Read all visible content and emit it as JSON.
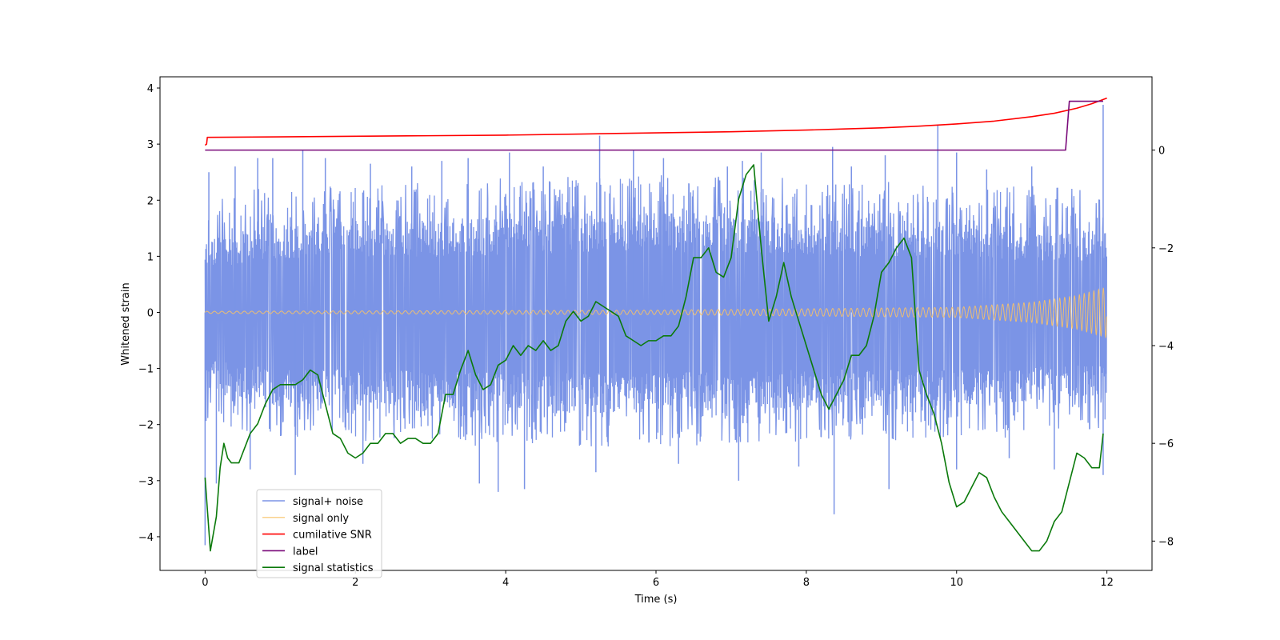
{
  "chart_data": {
    "type": "line",
    "xlabel": "Time (s)",
    "ylabel": "Whitened strain",
    "ylabel_right": "",
    "xlim": [
      -0.6,
      12.6
    ],
    "ylim": [
      -4.6,
      4.2
    ],
    "ylim_right": [
      -8.6,
      1.5
    ],
    "x_ticks": [
      0,
      2,
      4,
      6,
      8,
      10,
      12
    ],
    "x_tick_labels": [
      "0",
      "2",
      "4",
      "6",
      "8",
      "10",
      "12"
    ],
    "y_ticks": [
      4,
      3,
      2,
      1,
      0,
      -1,
      -2,
      -3,
      -4
    ],
    "y_tick_labels": [
      "4",
      "3",
      "2",
      "1",
      "0",
      "−1",
      "−2",
      "−3",
      "−4"
    ],
    "y_right_ticks": [
      0,
      -2,
      -4,
      -6,
      -8
    ],
    "y_right_tick_labels": [
      "0",
      "−2",
      "−4",
      "−6",
      "−8"
    ],
    "grid": false,
    "legend_position": "lower-left",
    "series": [
      {
        "name": "signal+ noise",
        "color": "#7b94e6",
        "axis": "left",
        "kind": "noise band",
        "x_range": [
          0,
          12
        ],
        "envelope_upper": [
          [
            0,
            1.3
          ],
          [
            1,
            1.6
          ],
          [
            2,
            1.6
          ],
          [
            4,
            1.7
          ],
          [
            6,
            1.8
          ],
          [
            8,
            1.7
          ],
          [
            10,
            1.6
          ],
          [
            12,
            1.5
          ]
        ],
        "envelope_lower": [
          [
            0,
            -1.4
          ],
          [
            1,
            -1.7
          ],
          [
            2,
            -1.7
          ],
          [
            4,
            -1.8
          ],
          [
            6,
            -1.8
          ],
          [
            8,
            -1.7
          ],
          [
            10,
            -1.7
          ],
          [
            12,
            -1.5
          ]
        ],
        "spikes": [
          [
            0.05,
            2.5
          ],
          [
            0.4,
            2.6
          ],
          [
            0.7,
            2.75
          ],
          [
            0.9,
            2.75
          ],
          [
            1.3,
            2.9
          ],
          [
            1.6,
            2.75
          ],
          [
            2.2,
            2.65
          ],
          [
            2.75,
            2.6
          ],
          [
            3.15,
            2.7
          ],
          [
            3.5,
            2.75
          ],
          [
            4.05,
            2.85
          ],
          [
            4.5,
            2.6
          ],
          [
            5.25,
            3.15
          ],
          [
            5.7,
            2.9
          ],
          [
            6.1,
            2.75
          ],
          [
            6.95,
            2.6
          ],
          [
            7.15,
            2.7
          ],
          [
            7.4,
            2.85
          ],
          [
            8.35,
            2.95
          ],
          [
            8.6,
            2.6
          ],
          [
            9.05,
            2.8
          ],
          [
            9.75,
            3.35
          ],
          [
            10.0,
            2.85
          ],
          [
            10.4,
            2.55
          ],
          [
            11.0,
            2.6
          ],
          [
            11.95,
            3.7
          ],
          [
            0.0,
            -4.15
          ],
          [
            0.15,
            -3.05
          ],
          [
            0.6,
            -2.8
          ],
          [
            1.2,
            -2.9
          ],
          [
            2.1,
            -2.7
          ],
          [
            3.65,
            -3.05
          ],
          [
            3.9,
            -3.2
          ],
          [
            4.25,
            -3.15
          ],
          [
            5.2,
            -2.85
          ],
          [
            6.3,
            -2.7
          ],
          [
            7.1,
            -3.0
          ],
          [
            7.9,
            -2.75
          ],
          [
            8.37,
            -3.6
          ],
          [
            9.1,
            -3.15
          ],
          [
            10.0,
            -2.8
          ],
          [
            10.7,
            -2.6
          ],
          [
            11.3,
            -2.8
          ],
          [
            11.95,
            -2.9
          ]
        ]
      },
      {
        "name": "signal only",
        "color": "#f9c266",
        "axis": "left",
        "kind": "chirp",
        "amplitude": [
          [
            0,
            0.02
          ],
          [
            6,
            0.04
          ],
          [
            10,
            0.09
          ],
          [
            11,
            0.18
          ],
          [
            11.6,
            0.3
          ],
          [
            12,
            0.45
          ]
        ],
        "frequency_hz": [
          [
            0,
            10
          ],
          [
            6,
            11
          ],
          [
            10,
            13
          ],
          [
            12,
            16
          ]
        ]
      },
      {
        "name": "cumilative SNR",
        "color": "#ff0000",
        "axis": "left",
        "x": [
          0.0,
          0.02,
          0.03,
          1,
          2,
          3,
          4,
          5,
          6,
          7,
          8,
          8.5,
          9,
          9.5,
          10,
          10.5,
          11,
          11.3,
          11.6,
          11.8,
          12.0
        ],
        "y": [
          2.98,
          3.0,
          3.12,
          3.13,
          3.14,
          3.15,
          3.16,
          3.18,
          3.2,
          3.22,
          3.25,
          3.27,
          3.29,
          3.32,
          3.36,
          3.41,
          3.49,
          3.55,
          3.64,
          3.72,
          3.82
        ]
      },
      {
        "name": "label",
        "color": "#7a0a7a",
        "axis": "right",
        "x": [
          0,
          11.45,
          11.5,
          11.95
        ],
        "y": [
          0,
          0,
          1,
          1
        ]
      },
      {
        "name": "signal statistics",
        "color": "#0b7a0b",
        "axis": "right",
        "x": [
          0.0,
          0.07,
          0.15,
          0.2,
          0.25,
          0.3,
          0.35,
          0.4,
          0.45,
          0.5,
          0.55,
          0.6,
          0.7,
          0.8,
          0.9,
          1.0,
          1.1,
          1.2,
          1.3,
          1.4,
          1.5,
          1.6,
          1.7,
          1.8,
          1.9,
          2.0,
          2.1,
          2.2,
          2.3,
          2.4,
          2.5,
          2.6,
          2.7,
          2.8,
          2.9,
          3.0,
          3.1,
          3.2,
          3.3,
          3.4,
          3.5,
          3.6,
          3.7,
          3.8,
          3.9,
          4.0,
          4.1,
          4.2,
          4.3,
          4.4,
          4.5,
          4.6,
          4.7,
          4.8,
          4.9,
          5.0,
          5.1,
          5.2,
          5.3,
          5.4,
          5.5,
          5.6,
          5.7,
          5.8,
          5.9,
          6.0,
          6.1,
          6.2,
          6.3,
          6.4,
          6.5,
          6.6,
          6.7,
          6.8,
          6.9,
          7.0,
          7.1,
          7.2,
          7.3,
          7.4,
          7.5,
          7.6,
          7.7,
          7.8,
          7.9,
          8.0,
          8.1,
          8.2,
          8.3,
          8.4,
          8.5,
          8.6,
          8.7,
          8.8,
          8.9,
          9.0,
          9.1,
          9.2,
          9.3,
          9.4,
          9.5,
          9.6,
          9.7,
          9.8,
          9.9,
          10.0,
          10.1,
          10.2,
          10.3,
          10.4,
          10.5,
          10.6,
          10.7,
          10.8,
          10.9,
          11.0,
          11.1,
          11.2,
          11.3,
          11.4,
          11.5,
          11.6,
          11.7,
          11.8,
          11.9,
          11.95
        ],
        "y": [
          -6.7,
          -8.2,
          -7.5,
          -6.5,
          -6.0,
          -6.3,
          -6.4,
          -6.4,
          -6.4,
          -6.2,
          -6.0,
          -5.8,
          -5.6,
          -5.2,
          -4.9,
          -4.8,
          -4.8,
          -4.8,
          -4.7,
          -4.5,
          -4.6,
          -5.2,
          -5.8,
          -5.9,
          -6.2,
          -6.3,
          -6.2,
          -6.0,
          -6.0,
          -5.8,
          -5.8,
          -6.0,
          -5.9,
          -5.9,
          -6.0,
          -6.0,
          -5.8,
          -5.0,
          -5.0,
          -4.5,
          -4.1,
          -4.6,
          -4.9,
          -4.8,
          -4.4,
          -4.3,
          -4.0,
          -4.2,
          -4.0,
          -4.1,
          -3.9,
          -4.1,
          -4.0,
          -3.5,
          -3.3,
          -3.5,
          -3.4,
          -3.1,
          -3.2,
          -3.3,
          -3.4,
          -3.8,
          -3.9,
          -4.0,
          -3.9,
          -3.9,
          -3.8,
          -3.8,
          -3.6,
          -3.0,
          -2.2,
          -2.2,
          -2.0,
          -2.5,
          -2.6,
          -2.2,
          -1.0,
          -0.5,
          -0.3,
          -2.0,
          -3.5,
          -3.0,
          -2.3,
          -3.0,
          -3.5,
          -4.0,
          -4.5,
          -5.0,
          -5.3,
          -5.0,
          -4.7,
          -4.2,
          -4.2,
          -4.0,
          -3.4,
          -2.5,
          -2.3,
          -2.0,
          -1.8,
          -2.2,
          -4.5,
          -5.0,
          -5.4,
          -6.0,
          -6.8,
          -7.3,
          -7.2,
          -6.9,
          -6.6,
          -6.7,
          -7.1,
          -7.4,
          -7.6,
          -7.8,
          -8.0,
          -8.2,
          -8.2,
          -8.0,
          -7.6,
          -7.4,
          -6.8,
          -6.2,
          -6.3,
          -6.5,
          -6.5,
          -5.8
        ]
      }
    ]
  }
}
